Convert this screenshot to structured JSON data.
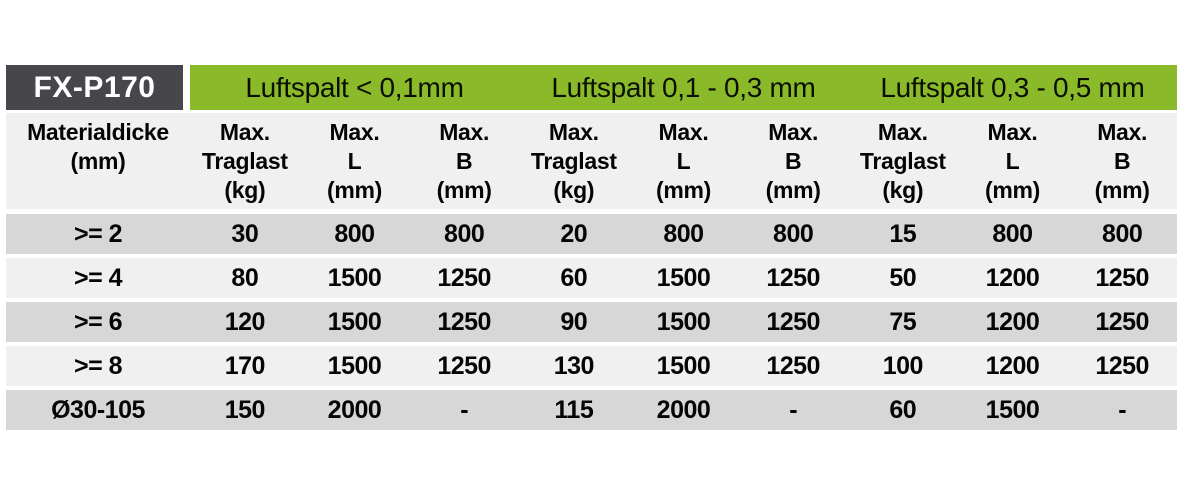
{
  "colors": {
    "brand_bg": "#47474b",
    "brand_text": "#ffffff",
    "accent_green": "#8aba2a",
    "row_dark": "#d7d7d7",
    "row_light": "#f0f0f0",
    "header_bg": "#f0f0f0",
    "text": "#050505"
  },
  "table": {
    "brand": "FX-P170",
    "section_labels": [
      "Luftspalt < 0,1mm",
      "Luftspalt 0,1 - 0,3 mm",
      "Luftspalt 0,3 - 0,5 mm"
    ],
    "material_column": {
      "title": "Materialdicke",
      "unit": "(mm)"
    },
    "measure_columns": [
      {
        "line1": "Max.",
        "line2": "Traglast",
        "line3": "(kg)"
      },
      {
        "line1": "Max.",
        "line2": "L",
        "line3": "(mm)"
      },
      {
        "line1": "Max.",
        "line2": "B",
        "line3": "(mm)"
      }
    ],
    "rows": [
      {
        "material": ">= 2",
        "values": [
          "30",
          "800",
          "800",
          "20",
          "800",
          "800",
          "15",
          "800",
          "800"
        ]
      },
      {
        "material": ">= 4",
        "values": [
          "80",
          "1500",
          "1250",
          "60",
          "1500",
          "1250",
          "50",
          "1200",
          "1250"
        ]
      },
      {
        "material": ">= 6",
        "values": [
          "120",
          "1500",
          "1250",
          "90",
          "1500",
          "1250",
          "75",
          "1200",
          "1250"
        ]
      },
      {
        "material": ">= 8",
        "values": [
          "170",
          "1500",
          "1250",
          "130",
          "1500",
          "1250",
          "100",
          "1200",
          "1250"
        ]
      },
      {
        "material": "Ø30-105",
        "values": [
          "150",
          "2000",
          "-",
          "115",
          "2000",
          "-",
          "60",
          "1500",
          "-"
        ]
      }
    ]
  },
  "chart_data": {
    "type": "table",
    "title": "FX-P170",
    "column_groups": [
      "Luftspalt < 0,1mm",
      "Luftspalt 0,1 - 0,3 mm",
      "Luftspalt 0,3 - 0,5 mm"
    ],
    "columns": [
      "Materialdicke (mm)",
      "Max. Traglast (kg)",
      "Max. L (mm)",
      "Max. B (mm)",
      "Max. Traglast (kg)",
      "Max. L (mm)",
      "Max. B (mm)",
      "Max. Traglast (kg)",
      "Max. L (mm)",
      "Max. B (mm)"
    ],
    "rows": [
      [
        ">= 2",
        30,
        800,
        800,
        20,
        800,
        800,
        15,
        800,
        800
      ],
      [
        ">= 4",
        80,
        1500,
        1250,
        60,
        1500,
        1250,
        50,
        1200,
        1250
      ],
      [
        ">= 6",
        120,
        1500,
        1250,
        90,
        1500,
        1250,
        75,
        1200,
        1250
      ],
      [
        ">= 8",
        170,
        1500,
        1250,
        130,
        1500,
        1250,
        100,
        1200,
        1250
      ],
      [
        "Ø30-105",
        150,
        2000,
        "-",
        115,
        2000,
        "-",
        60,
        1500,
        "-"
      ]
    ]
  }
}
